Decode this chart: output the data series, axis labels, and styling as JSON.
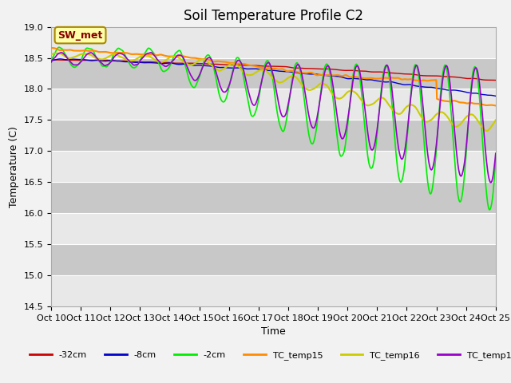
{
  "title": "Soil Temperature Profile C2",
  "xlabel": "Time",
  "ylabel": "Temperature (C)",
  "ylim": [
    14.5,
    19.0
  ],
  "y_ticks": [
    14.5,
    15.0,
    15.5,
    16.0,
    16.5,
    17.0,
    17.5,
    18.0,
    18.5,
    19.0
  ],
  "x_tick_labels": [
    "Oct 10",
    "Oct 11",
    "Oct 12",
    "Oct 13",
    "Oct 14",
    "Oct 15",
    "Oct 16",
    "Oct 17",
    "Oct 18",
    "Oct 19",
    "Oct 20",
    "Oct 21",
    "Oct 22",
    "Oct 23",
    "Oct 24",
    "Oct 25"
  ],
  "colors": {
    "TC_temp15": "#FF8C00",
    "TC_temp16": "#CCCC00",
    "TC_temp17": "#9900CC",
    "-2cm": "#00EE00",
    "-8cm": "#0000CC",
    "-32cm": "#CC0000"
  },
  "legend_label": "SW_met",
  "legend_box_color": "#FFFFAA",
  "legend_box_edge": "#AA8800",
  "legend_text_color": "#880000",
  "fig_bg_color": "#F2F2F2",
  "plot_bg_color": "#DCDCDC",
  "stripe_color": "#C8C8C8",
  "white_band": "#E8E8E8",
  "title_fontsize": 12,
  "axis_label_fontsize": 9,
  "tick_fontsize": 8
}
